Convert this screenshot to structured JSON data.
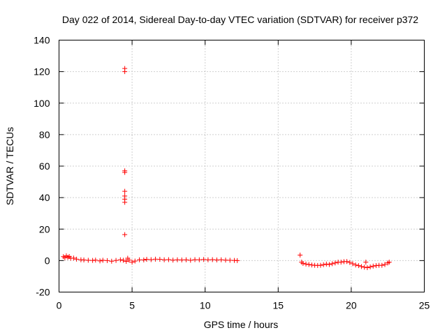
{
  "chart_data": {
    "type": "scatter",
    "title": "Day 022 of 2014, Sidereal Day-to-day VTEC variation (SDTVAR) for receiver p372",
    "xlabel": "GPS time / hours",
    "ylabel": "SDTVAR / TECUs",
    "xlim": [
      0,
      25
    ],
    "ylim": [
      -20,
      140
    ],
    "xticks": [
      0,
      5,
      10,
      15,
      20,
      25
    ],
    "yticks": [
      -20,
      0,
      20,
      40,
      60,
      80,
      100,
      120,
      140
    ],
    "grid": true,
    "marker": "plus",
    "colors": {
      "series": "#ff0000",
      "grid": "#a0a0a0",
      "axes": "#000000"
    },
    "series": [
      {
        "name": "SDTVAR",
        "points": [
          [
            0.3,
            2.5
          ],
          [
            0.4,
            1.8
          ],
          [
            0.5,
            3.0
          ],
          [
            0.6,
            2.0
          ],
          [
            0.7,
            2.6
          ],
          [
            0.8,
            1.5
          ],
          [
            1.0,
            1.6
          ],
          [
            1.2,
            0.9
          ],
          [
            1.5,
            0.5
          ],
          [
            1.7,
            0.4
          ],
          [
            2.0,
            0.2
          ],
          [
            2.3,
            0.1
          ],
          [
            2.5,
            0.3
          ],
          [
            2.8,
            -0.2
          ],
          [
            3.0,
            0.2
          ],
          [
            3.3,
            0.0
          ],
          [
            3.6,
            -0.4
          ],
          [
            3.9,
            0.1
          ],
          [
            4.2,
            0.5
          ],
          [
            4.4,
            0.2
          ],
          [
            4.5,
            122.0
          ],
          [
            4.5,
            120.0
          ],
          [
            4.5,
            57.0
          ],
          [
            4.5,
            56.0
          ],
          [
            4.5,
            44.0
          ],
          [
            4.5,
            41.0
          ],
          [
            4.5,
            39.0
          ],
          [
            4.5,
            37.0
          ],
          [
            4.5,
            16.5
          ],
          [
            4.6,
            -0.5
          ],
          [
            4.7,
            1.5
          ],
          [
            4.8,
            0.3
          ],
          [
            5.0,
            -1.0
          ],
          [
            5.2,
            -0.3
          ],
          [
            5.5,
            0.5
          ],
          [
            5.8,
            0.4
          ],
          [
            6.0,
            0.8
          ],
          [
            6.3,
            0.6
          ],
          [
            6.6,
            0.9
          ],
          [
            6.9,
            0.8
          ],
          [
            7.2,
            0.5
          ],
          [
            7.5,
            0.6
          ],
          [
            7.8,
            0.3
          ],
          [
            8.1,
            0.5
          ],
          [
            8.4,
            0.4
          ],
          [
            8.7,
            0.5
          ],
          [
            9.0,
            0.2
          ],
          [
            9.3,
            0.6
          ],
          [
            9.6,
            0.5
          ],
          [
            9.9,
            0.7
          ],
          [
            10.2,
            0.5
          ],
          [
            10.5,
            0.6
          ],
          [
            10.8,
            0.4
          ],
          [
            11.1,
            0.5
          ],
          [
            11.4,
            0.3
          ],
          [
            11.7,
            0.2
          ],
          [
            12.0,
            0.1
          ],
          [
            12.2,
            0.0
          ],
          [
            16.5,
            3.5
          ],
          [
            16.6,
            -1.0
          ],
          [
            16.7,
            -1.8
          ],
          [
            16.9,
            -2.2
          ],
          [
            17.1,
            -2.5
          ],
          [
            17.3,
            -2.8
          ],
          [
            17.5,
            -3.0
          ],
          [
            17.7,
            -3.1
          ],
          [
            17.9,
            -3.0
          ],
          [
            18.1,
            -2.6
          ],
          [
            18.3,
            -2.2
          ],
          [
            18.5,
            -2.5
          ],
          [
            18.7,
            -2.0
          ],
          [
            18.9,
            -1.5
          ],
          [
            19.1,
            -1.0
          ],
          [
            19.3,
            -1.0
          ],
          [
            19.5,
            -0.7
          ],
          [
            19.7,
            -0.6
          ],
          [
            19.9,
            -1.2
          ],
          [
            20.1,
            -2.0
          ],
          [
            20.3,
            -2.8
          ],
          [
            20.5,
            -3.2
          ],
          [
            20.7,
            -3.8
          ],
          [
            20.9,
            -4.2
          ],
          [
            21.0,
            -1.0
          ],
          [
            21.1,
            -4.5
          ],
          [
            21.3,
            -4.0
          ],
          [
            21.5,
            -3.5
          ],
          [
            21.7,
            -3.2
          ],
          [
            21.9,
            -3.0
          ],
          [
            22.1,
            -3.0
          ],
          [
            22.3,
            -2.5
          ],
          [
            22.5,
            -1.5
          ],
          [
            22.6,
            -1.0
          ]
        ]
      }
    ]
  }
}
